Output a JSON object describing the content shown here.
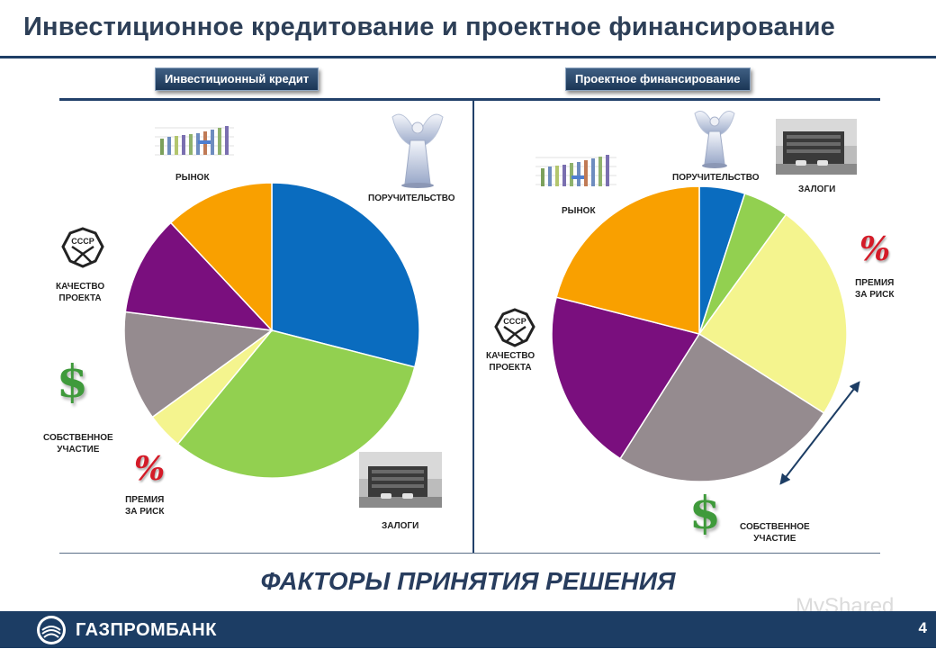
{
  "header": {
    "title": "Инвестиционное кредитование и проектное финансирование"
  },
  "tags": {
    "left": "Инвестиционный кредит",
    "right": "Проектное финансирование"
  },
  "colors": {
    "blue": "#0a6cbf",
    "green": "#92d050",
    "light_yellow": "#f4f48e",
    "gray": "#958b8f",
    "purple": "#7a0f7e",
    "orange": "#f9a000",
    "brand": "#1c3d64"
  },
  "left_labels": {
    "market": "РЫНОК",
    "guarantee": "ПОРУЧИТЕЛЬСТВО",
    "quality_1": "КАЧЕСТВО",
    "quality_2": "ПРОЕКТА",
    "own_1": "СОБСТВЕННОЕ",
    "own_2": "УЧАСТИЕ",
    "premium_1": "ПРЕМИЯ",
    "premium_2": "ЗА РИСК",
    "collateral": "ЗАЛОГИ"
  },
  "right_labels": {
    "market": "РЫНОК",
    "guarantee": "ПОРУЧИТЕЛЬСТВО",
    "collateral": "ЗАЛОГИ",
    "premium_1": "ПРЕМИЯ",
    "premium_2": "ЗА РИСК",
    "quality_1": "КАЧЕСТВО",
    "quality_2": "ПРОЕКТА",
    "own_1": "СОБСТВЕННОЕ",
    "own_2": "УЧАСТИЕ"
  },
  "icons": {
    "stamp_text": "СССР",
    "percent_glyph": "%",
    "dollar_glyph": "$"
  },
  "chart_data": [
    {
      "type": "pie",
      "title": "",
      "slices": [
        {
          "value": 29.0,
          "color": "#0a6cbf"
        },
        {
          "value": 32.0,
          "color": "#92d050"
        },
        {
          "value": 4.0,
          "color": "#f4f48e"
        },
        {
          "value": 12.0,
          "color": "#958b8f"
        },
        {
          "value": 11.0,
          "color": "#7a0f7e"
        },
        {
          "value": 12.0,
          "color": "#f9a000"
        }
      ]
    },
    {
      "type": "pie",
      "title": "",
      "slices": [
        {
          "value": 5.0,
          "color": "#0a6cbf"
        },
        {
          "value": 5.0,
          "color": "#92d050"
        },
        {
          "value": 24.0,
          "color": "#f4f48e"
        },
        {
          "value": 25.0,
          "color": "#958b8f"
        },
        {
          "value": 20.0,
          "color": "#7a0f7e"
        },
        {
          "value": 21.0,
          "color": "#f9a000"
        }
      ]
    }
  ],
  "footer": {
    "title": "ФАКТОРЫ ПРИНЯТИЯ РЕШЕНИЯ",
    "bank": "ГАЗПРОМБАНК",
    "page": "4",
    "watermark": "MyShared"
  }
}
